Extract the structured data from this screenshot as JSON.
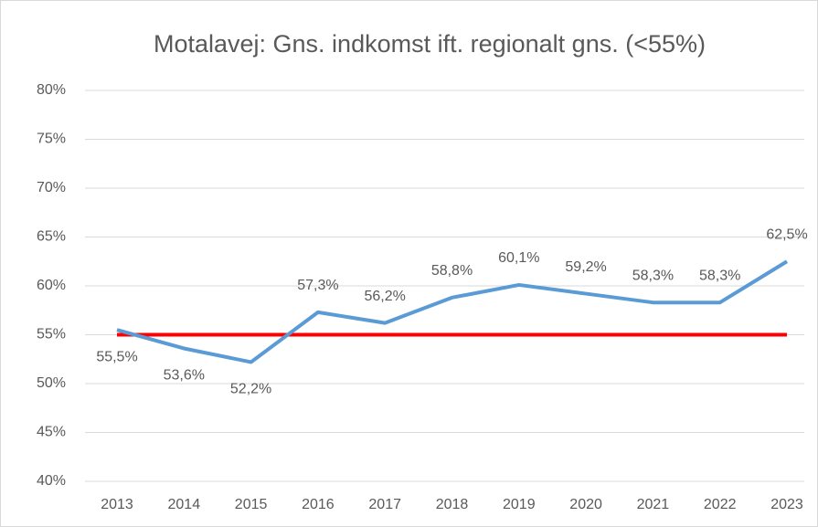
{
  "chart_data": {
    "type": "line",
    "title": "Motalavej: Gns. indkomst ift. regionalt gns. (<55%)",
    "categories": [
      "2013",
      "2014",
      "2015",
      "2016",
      "2017",
      "2018",
      "2019",
      "2020",
      "2021",
      "2022",
      "2023"
    ],
    "values": [
      55.5,
      53.6,
      52.2,
      57.3,
      56.2,
      58.8,
      60.1,
      59.2,
      58.3,
      58.3,
      62.5
    ],
    "value_labels": [
      "55,5%",
      "53,6%",
      "52,2%",
      "57,3%",
      "56,2%",
      "58,8%",
      "60,1%",
      "59,2%",
      "58,3%",
      "58,3%",
      "62,5%"
    ],
    "color": "#5b9bd5",
    "reference_line": {
      "value": 55,
      "color": "#ff0000"
    },
    "ylim": [
      40,
      80
    ],
    "yticks": [
      {
        "value": 40,
        "label": "40%"
      },
      {
        "value": 45,
        "label": "45%"
      },
      {
        "value": 50,
        "label": "50%"
      },
      {
        "value": 55,
        "label": "55%"
      },
      {
        "value": 60,
        "label": "60%"
      },
      {
        "value": 65,
        "label": "65%"
      },
      {
        "value": 70,
        "label": "70%"
      },
      {
        "value": 75,
        "label": "75%"
      },
      {
        "value": 80,
        "label": "80%"
      }
    ],
    "grid": true
  }
}
